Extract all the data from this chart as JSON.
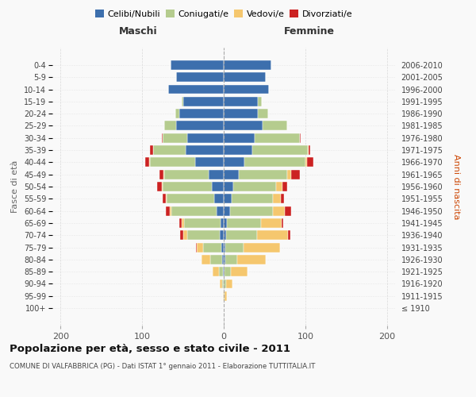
{
  "age_groups": [
    "100+",
    "95-99",
    "90-94",
    "85-89",
    "80-84",
    "75-79",
    "70-74",
    "65-69",
    "60-64",
    "55-59",
    "50-54",
    "45-49",
    "40-44",
    "35-39",
    "30-34",
    "25-29",
    "20-24",
    "15-19",
    "10-14",
    "5-9",
    "0-4"
  ],
  "birth_years": [
    "≤ 1910",
    "1911-1915",
    "1916-1920",
    "1921-1925",
    "1926-1930",
    "1931-1935",
    "1936-1940",
    "1941-1945",
    "1946-1950",
    "1951-1955",
    "1956-1960",
    "1961-1965",
    "1966-1970",
    "1971-1975",
    "1976-1980",
    "1981-1985",
    "1986-1990",
    "1991-1995",
    "1996-2000",
    "2001-2005",
    "2006-2010"
  ],
  "maschi": {
    "celibi": [
      0,
      0,
      0,
      1,
      2,
      3,
      5,
      4,
      9,
      12,
      15,
      18,
      35,
      47,
      45,
      58,
      54,
      50,
      68,
      58,
      65
    ],
    "coniugati": [
      0,
      0,
      2,
      5,
      15,
      22,
      40,
      45,
      55,
      58,
      60,
      55,
      55,
      40,
      30,
      15,
      5,
      2,
      0,
      0,
      0
    ],
    "vedovi": [
      0,
      1,
      3,
      8,
      10,
      8,
      5,
      3,
      2,
      1,
      1,
      1,
      1,
      0,
      0,
      0,
      0,
      0,
      0,
      0,
      0
    ],
    "divorziati": [
      0,
      0,
      0,
      0,
      0,
      1,
      3,
      2,
      5,
      4,
      6,
      5,
      5,
      3,
      1,
      0,
      0,
      0,
      0,
      0,
      0
    ]
  },
  "femmine": {
    "nubili": [
      0,
      0,
      0,
      1,
      2,
      2,
      3,
      4,
      8,
      10,
      12,
      18,
      25,
      35,
      38,
      48,
      42,
      42,
      55,
      52,
      58
    ],
    "coniugate": [
      0,
      1,
      3,
      8,
      15,
      22,
      38,
      42,
      52,
      50,
      52,
      60,
      75,
      68,
      55,
      30,
      12,
      5,
      0,
      0,
      0
    ],
    "vedove": [
      0,
      3,
      8,
      20,
      35,
      45,
      38,
      25,
      15,
      10,
      8,
      5,
      2,
      1,
      0,
      0,
      0,
      0,
      0,
      0,
      0
    ],
    "divorziate": [
      0,
      0,
      0,
      0,
      0,
      0,
      3,
      2,
      8,
      4,
      6,
      10,
      8,
      2,
      1,
      0,
      0,
      0,
      0,
      0,
      0
    ]
  },
  "colors": {
    "celibi": "#3d6fad",
    "coniugati": "#b5cc8e",
    "vedovi": "#f5c76e",
    "divorziati": "#cc2222"
  },
  "title": "Popolazione per età, sesso e stato civile - 2011",
  "subtitle": "COMUNE DI VALFABBRICA (PG) - Dati ISTAT 1° gennaio 2011 - Elaborazione TUTTITALIA.IT",
  "ylabel_left": "Fasce di età",
  "ylabel_right": "Anni di nascita",
  "xlabel_left": "Maschi",
  "xlabel_right": "Femmine",
  "xlim": 210,
  "background_color": "#f9f9f9"
}
